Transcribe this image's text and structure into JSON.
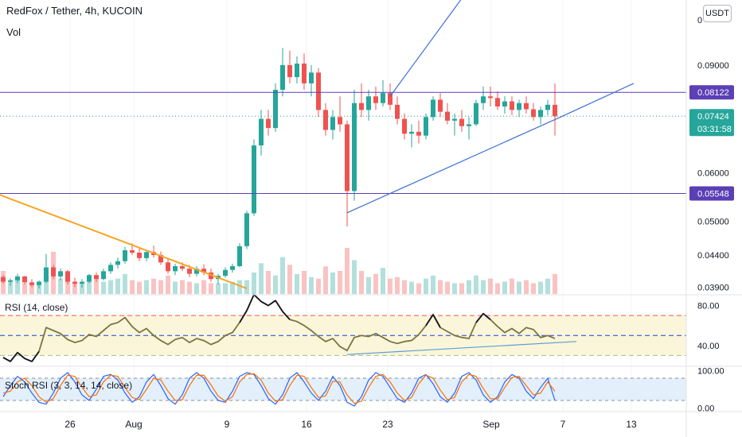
{
  "symbol_title": "RedFox / Tether, 4h, KUCOIN",
  "vol_label": "Vol",
  "currency_button": "USDT",
  "rsi_label": "RSI (14, close)",
  "stoch_label": "Stoch RSI (3, 3, 14, 14, close)",
  "chart_data": [
    {
      "type": "candlestick",
      "x_ticks": [
        "26",
        "Aug",
        "9",
        "16",
        "23",
        "Sep",
        "7",
        "13"
      ],
      "y_ticks": [
        "0.09000",
        "0.06000",
        "0.05000",
        "0.04400",
        "0.03900"
      ],
      "y_tick_top_partial": "0",
      "ylim": [
        0.038,
        0.115
      ],
      "y_scale": "log",
      "price_labels": [
        {
          "label": "0.08122",
          "value": 0.08122,
          "color": "#5b3fb5"
        },
        {
          "label": "0.05548",
          "value": 0.05548,
          "color": "#5b3fb5"
        },
        {
          "label": "0.07424",
          "value": 0.07424,
          "countdown": "03:31:58",
          "color": "#26a69a"
        }
      ],
      "horizontal_lines": [
        0.08122,
        0.05548
      ],
      "last_price": 0.07424,
      "trend_lines": [
        {
          "color": "#f5a623",
          "from": [
            -1,
            0.0555
          ],
          "to": [
            34,
            0.0388
          ]
        },
        {
          "color": "#3d6fd9",
          "from": [
            48,
            0.0516
          ],
          "to": [
            78,
            0.0742
          ]
        },
        {
          "color": "#3d6fd9",
          "from": [
            78,
            0.0742
          ],
          "to": [
            88,
            0.084
          ]
        },
        {
          "color": "#3d6fd9",
          "from": [
            54,
            0.08
          ],
          "to": [
            65,
            0.12
          ]
        }
      ],
      "candles": [
        [
          0.0405,
          0.0408,
          0.0395,
          0.0398
        ],
        [
          0.0398,
          0.0403,
          0.0392,
          0.04
        ],
        [
          0.04,
          0.041,
          0.0396,
          0.0406
        ],
        [
          0.0406,
          0.0407,
          0.0394,
          0.0397
        ],
        [
          0.0397,
          0.0402,
          0.039,
          0.0393
        ],
        [
          0.0393,
          0.04,
          0.0388,
          0.0398
        ],
        [
          0.0398,
          0.0442,
          0.0396,
          0.042
        ],
        [
          0.042,
          0.0424,
          0.0402,
          0.0406
        ],
        [
          0.0406,
          0.0418,
          0.04,
          0.0414
        ],
        [
          0.0414,
          0.0416,
          0.0394,
          0.0398
        ],
        [
          0.0398,
          0.0404,
          0.039,
          0.0395
        ],
        [
          0.0395,
          0.0402,
          0.0389,
          0.0398
        ],
        [
          0.0398,
          0.041,
          0.0396,
          0.0408
        ],
        [
          0.0408,
          0.0412,
          0.0398,
          0.0402
        ],
        [
          0.0402,
          0.0418,
          0.04,
          0.0414
        ],
        [
          0.0414,
          0.0428,
          0.041,
          0.0424
        ],
        [
          0.0424,
          0.0436,
          0.0418,
          0.043
        ],
        [
          0.043,
          0.0454,
          0.0426,
          0.0448
        ],
        [
          0.0448,
          0.046,
          0.044,
          0.0444
        ],
        [
          0.0444,
          0.0452,
          0.043,
          0.0435
        ],
        [
          0.0435,
          0.0448,
          0.043,
          0.0445
        ],
        [
          0.0445,
          0.0456,
          0.0436,
          0.044
        ],
        [
          0.044,
          0.0446,
          0.0424,
          0.0428
        ],
        [
          0.0428,
          0.0434,
          0.041,
          0.0414
        ],
        [
          0.0414,
          0.0426,
          0.0408,
          0.0422
        ],
        [
          0.0422,
          0.0428,
          0.0414,
          0.0418
        ],
        [
          0.0418,
          0.0424,
          0.0405,
          0.041
        ],
        [
          0.041,
          0.0422,
          0.0406,
          0.0418
        ],
        [
          0.0418,
          0.0425,
          0.0408,
          0.0412
        ],
        [
          0.0412,
          0.0418,
          0.0398,
          0.0402
        ],
        [
          0.0402,
          0.041,
          0.0394,
          0.0407
        ],
        [
          0.0407,
          0.042,
          0.0404,
          0.0416
        ],
        [
          0.0416,
          0.0426,
          0.0412,
          0.0422
        ],
        [
          0.0422,
          0.046,
          0.042,
          0.0455
        ],
        [
          0.0455,
          0.052,
          0.045,
          0.0515
        ],
        [
          0.0515,
          0.068,
          0.051,
          0.0665
        ],
        [
          0.0665,
          0.076,
          0.064,
          0.0735
        ],
        [
          0.0735,
          0.076,
          0.069,
          0.071
        ],
        [
          0.071,
          0.084,
          0.07,
          0.082
        ],
        [
          0.082,
          0.096,
          0.08,
          0.09
        ],
        [
          0.09,
          0.095,
          0.084,
          0.086
        ],
        [
          0.086,
          0.093,
          0.084,
          0.0905
        ],
        [
          0.0905,
          0.094,
          0.082,
          0.084
        ],
        [
          0.084,
          0.09,
          0.08,
          0.0875
        ],
        [
          0.0875,
          0.089,
          0.074,
          0.076
        ],
        [
          0.076,
          0.078,
          0.069,
          0.0705
        ],
        [
          0.0705,
          0.076,
          0.068,
          0.074
        ],
        [
          0.074,
          0.08,
          0.07,
          0.072
        ],
        [
          0.072,
          0.073,
          0.049,
          0.056
        ],
        [
          0.056,
          0.082,
          0.054,
          0.078
        ],
        [
          0.078,
          0.084,
          0.074,
          0.076
        ],
        [
          0.076,
          0.082,
          0.073,
          0.08
        ],
        [
          0.08,
          0.083,
          0.076,
          0.078
        ],
        [
          0.078,
          0.085,
          0.077,
          0.081
        ],
        [
          0.081,
          0.084,
          0.076,
          0.0775
        ],
        [
          0.0775,
          0.08,
          0.072,
          0.0735
        ],
        [
          0.0735,
          0.075,
          0.068,
          0.0695
        ],
        [
          0.0695,
          0.072,
          0.066,
          0.07
        ],
        [
          0.07,
          0.073,
          0.067,
          0.069
        ],
        [
          0.069,
          0.075,
          0.068,
          0.074
        ],
        [
          0.074,
          0.08,
          0.073,
          0.079
        ],
        [
          0.079,
          0.081,
          0.074,
          0.0755
        ],
        [
          0.0755,
          0.078,
          0.072,
          0.073
        ],
        [
          0.073,
          0.075,
          0.069,
          0.0735
        ],
        [
          0.0735,
          0.076,
          0.07,
          0.0715
        ],
        [
          0.0715,
          0.074,
          0.068,
          0.072
        ],
        [
          0.072,
          0.079,
          0.0715,
          0.078
        ],
        [
          0.078,
          0.083,
          0.076,
          0.08
        ],
        [
          0.08,
          0.083,
          0.077,
          0.0795
        ],
        [
          0.0795,
          0.0815,
          0.076,
          0.077
        ],
        [
          0.077,
          0.08,
          0.075,
          0.0785
        ],
        [
          0.0785,
          0.08,
          0.0745,
          0.076
        ],
        [
          0.076,
          0.079,
          0.074,
          0.078
        ],
        [
          0.078,
          0.08,
          0.075,
          0.0762
        ],
        [
          0.0762,
          0.078,
          0.073,
          0.074
        ],
        [
          0.074,
          0.077,
          0.072,
          0.076
        ],
        [
          0.076,
          0.079,
          0.0745,
          0.0775
        ],
        [
          0.0775,
          0.084,
          0.069,
          0.0742
        ]
      ],
      "volumes": [
        30,
        18,
        22,
        14,
        12,
        16,
        26,
        55,
        20,
        16,
        14,
        14,
        18,
        22,
        16,
        18,
        20,
        26,
        18,
        16,
        18,
        20,
        18,
        24,
        16,
        18,
        16,
        14,
        18,
        14,
        14,
        14,
        16,
        18,
        18,
        28,
        40,
        30,
        24,
        48,
        38,
        26,
        30,
        22,
        20,
        36,
        28,
        30,
        60,
        44,
        30,
        22,
        26,
        34,
        20,
        22,
        18,
        16,
        14,
        20,
        24,
        18,
        16,
        14,
        14,
        18,
        24,
        18,
        20,
        14,
        16,
        20,
        16,
        18,
        14,
        16,
        20,
        26
      ]
    },
    {
      "type": "line",
      "name": "RSI (14, close)",
      "ylim": [
        20,
        90
      ],
      "y_ticks": [
        "80.00",
        "40.00"
      ],
      "bands": {
        "upper": 70,
        "middle": 50,
        "lower": 30
      },
      "values": [
        28,
        24,
        33,
        27,
        24,
        34,
        58,
        55,
        52,
        46,
        43,
        45,
        51,
        49,
        55,
        61,
        63,
        68,
        59,
        53,
        57,
        50,
        45,
        41,
        46,
        48,
        43,
        47,
        45,
        41,
        44,
        50,
        53,
        63,
        75,
        91,
        84,
        80,
        85,
        74,
        66,
        64,
        60,
        55,
        49,
        44,
        47,
        39,
        35,
        48,
        50,
        49,
        52,
        48,
        44,
        42,
        44,
        45,
        51,
        60,
        71,
        58,
        54,
        50,
        48,
        47,
        63,
        72,
        66,
        59,
        53,
        57,
        52,
        58,
        56,
        48,
        50,
        47
      ],
      "trend_line": {
        "from": [
          48,
          31
        ],
        "to": [
          80,
          44
        ]
      }
    },
    {
      "type": "line",
      "name": "Stoch RSI (3, 3, 14, 14, close)",
      "ylim": [
        -10,
        110
      ],
      "y_ticks": [
        "100.00",
        "0.00"
      ],
      "bands": {
        "upper": 80,
        "lower": 20
      },
      "series": [
        {
          "color": "#2962ff",
          "values": [
            30,
            60,
            85,
            70,
            40,
            15,
            10,
            40,
            80,
            95,
            70,
            35,
            20,
            50,
            85,
            90,
            75,
            40,
            15,
            30,
            70,
            90,
            60,
            25,
            10,
            35,
            80,
            95,
            80,
            45,
            20,
            15,
            45,
            85,
            95,
            90,
            60,
            25,
            10,
            35,
            80,
            95,
            70,
            40,
            20,
            45,
            85,
            60,
            15,
            5,
            30,
            75,
            95,
            85,
            55,
            25,
            15,
            40,
            80,
            90,
            65,
            30,
            15,
            40,
            85,
            95,
            75,
            35,
            15,
            30,
            70,
            90,
            80,
            45,
            25,
            55,
            80,
            20
          ]
        },
        {
          "color": "#ff6d00",
          "values": [
            40,
            45,
            70,
            80,
            60,
            30,
            15,
            25,
            60,
            88,
            85,
            55,
            30,
            35,
            70,
            88,
            85,
            55,
            28,
            22,
            50,
            80,
            75,
            45,
            20,
            22,
            60,
            88,
            88,
            62,
            32,
            18,
            30,
            70,
            90,
            92,
            75,
            40,
            18,
            22,
            60,
            88,
            85,
            55,
            28,
            32,
            72,
            70,
            35,
            12,
            18,
            55,
            85,
            90,
            70,
            40,
            20,
            28,
            65,
            88,
            80,
            48,
            22,
            28,
            70,
            90,
            85,
            52,
            25,
            24,
            55,
            82,
            85,
            60,
            35,
            40,
            70,
            45
          ]
        }
      ]
    }
  ]
}
